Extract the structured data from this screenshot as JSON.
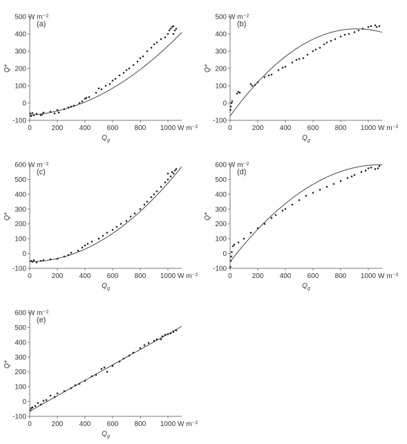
{
  "figure": {
    "x_unit_label": "W m⁻²",
    "y_unit_label": "W m⁻²"
  },
  "chart_data": [
    {
      "type": "scatter",
      "panel_label": "(a)",
      "xlabel": "Q",
      "xlabel_sub": "g",
      "ylabel": "Q*",
      "xlim": [
        0,
        1100
      ],
      "ylim": [
        -100,
        500
      ],
      "xticks": [
        0,
        200,
        400,
        600,
        800,
        1000
      ],
      "yticks": [
        -100,
        0,
        100,
        200,
        300,
        400,
        500
      ],
      "fit_curve": {
        "a": -70,
        "b": 0.05,
        "c": 0.00035
      },
      "points": [
        [
          5,
          -60
        ],
        [
          10,
          -75
        ],
        [
          20,
          -58
        ],
        [
          30,
          -70
        ],
        [
          50,
          -62
        ],
        [
          80,
          -70
        ],
        [
          90,
          -65
        ],
        [
          100,
          -55
        ],
        [
          150,
          -50
        ],
        [
          180,
          -60
        ],
        [
          200,
          -40
        ],
        [
          210,
          -55
        ],
        [
          250,
          -35
        ],
        [
          280,
          -25
        ],
        [
          300,
          -20
        ],
        [
          320,
          -15
        ],
        [
          360,
          0
        ],
        [
          380,
          10
        ],
        [
          400,
          25
        ],
        [
          410,
          30
        ],
        [
          430,
          35
        ],
        [
          480,
          60
        ],
        [
          500,
          85
        ],
        [
          520,
          80
        ],
        [
          550,
          100
        ],
        [
          580,
          110
        ],
        [
          600,
          130
        ],
        [
          620,
          140
        ],
        [
          650,
          160
        ],
        [
          680,
          175
        ],
        [
          700,
          190
        ],
        [
          720,
          200
        ],
        [
          750,
          220
        ],
        [
          780,
          240
        ],
        [
          800,
          260
        ],
        [
          820,
          270
        ],
        [
          850,
          300
        ],
        [
          880,
          320
        ],
        [
          900,
          340
        ],
        [
          920,
          350
        ],
        [
          950,
          370
        ],
        [
          980,
          380
        ],
        [
          1000,
          400
        ],
        [
          1010,
          420
        ],
        [
          1020,
          430
        ],
        [
          1030,
          440
        ],
        [
          1040,
          445
        ],
        [
          1050,
          420
        ],
        [
          1060,
          430
        ],
        [
          1040,
          400
        ]
      ]
    },
    {
      "type": "scatter",
      "panel_label": "(b)",
      "xlabel": "Q",
      "xlabel_sub": "g",
      "ylabel": "Q*",
      "xlim": [
        0,
        1100
      ],
      "ylim": [
        -100,
        500
      ],
      "xticks": [
        0,
        200,
        400,
        600,
        800,
        1000
      ],
      "yticks": [
        -100,
        0,
        100,
        200,
        300,
        400,
        500
      ],
      "fit_curve": {
        "a": -75,
        "b": 1.1,
        "c": -0.0006
      },
      "points": [
        [
          2,
          -40
        ],
        [
          5,
          -20
        ],
        [
          10,
          0
        ],
        [
          15,
          10
        ],
        [
          50,
          55
        ],
        [
          60,
          65
        ],
        [
          70,
          60
        ],
        [
          150,
          110
        ],
        [
          160,
          100
        ],
        [
          180,
          105
        ],
        [
          200,
          120
        ],
        [
          250,
          150
        ],
        [
          280,
          160
        ],
        [
          300,
          165
        ],
        [
          350,
          190
        ],
        [
          380,
          205
        ],
        [
          400,
          210
        ],
        [
          450,
          235
        ],
        [
          480,
          250
        ],
        [
          500,
          255
        ],
        [
          530,
          260
        ],
        [
          560,
          280
        ],
        [
          600,
          300
        ],
        [
          620,
          310
        ],
        [
          650,
          320
        ],
        [
          680,
          340
        ],
        [
          700,
          350
        ],
        [
          730,
          360
        ],
        [
          760,
          370
        ],
        [
          800,
          385
        ],
        [
          830,
          395
        ],
        [
          860,
          400
        ],
        [
          900,
          410
        ],
        [
          930,
          420
        ],
        [
          960,
          430
        ],
        [
          1000,
          440
        ],
        [
          1020,
          445
        ],
        [
          1050,
          450
        ],
        [
          1060,
          440
        ],
        [
          1080,
          445
        ]
      ]
    },
    {
      "type": "scatter",
      "panel_label": "(c)",
      "xlabel": "Q",
      "xlabel_sub": "g",
      "ylabel": "Q*",
      "xlim": [
        0,
        1100
      ],
      "ylim": [
        -100,
        600
      ],
      "xticks": [
        0,
        200,
        400,
        600,
        800,
        1000
      ],
      "yticks": [
        -100,
        0,
        100,
        200,
        300,
        400,
        500,
        600
      ],
      "fit_curve": {
        "a": -55,
        "b": 0.0,
        "c": 0.00053
      },
      "points": [
        [
          10,
          -50
        ],
        [
          20,
          -55
        ],
        [
          30,
          -45
        ],
        [
          50,
          -60
        ],
        [
          80,
          -50
        ],
        [
          100,
          -45
        ],
        [
          150,
          -40
        ],
        [
          200,
          -35
        ],
        [
          250,
          -20
        ],
        [
          280,
          -10
        ],
        [
          300,
          5
        ],
        [
          350,
          20
        ],
        [
          380,
          40
        ],
        [
          400,
          55
        ],
        [
          420,
          65
        ],
        [
          450,
          80
        ],
        [
          500,
          100
        ],
        [
          530,
          120
        ],
        [
          560,
          140
        ],
        [
          600,
          160
        ],
        [
          630,
          180
        ],
        [
          660,
          200
        ],
        [
          700,
          220
        ],
        [
          730,
          250
        ],
        [
          760,
          270
        ],
        [
          800,
          300
        ],
        [
          830,
          330
        ],
        [
          850,
          350
        ],
        [
          880,
          380
        ],
        [
          900,
          400
        ],
        [
          920,
          420
        ],
        [
          950,
          450
        ],
        [
          980,
          480
        ],
        [
          1000,
          500
        ],
        [
          1020,
          520
        ],
        [
          1040,
          540
        ],
        [
          1050,
          560
        ],
        [
          1060,
          570
        ],
        [
          1030,
          550
        ],
        [
          1000,
          540
        ]
      ]
    },
    {
      "type": "scatter",
      "panel_label": "(d)",
      "xlabel": "Q",
      "xlabel_sub": "g",
      "ylabel": "Q*",
      "xlim": [
        0,
        1100
      ],
      "ylim": [
        -100,
        600
      ],
      "xticks": [
        0,
        200,
        400,
        600,
        800,
        1000
      ],
      "yticks": [
        -100,
        0,
        100,
        200,
        300,
        400,
        500,
        600
      ],
      "fit_curve": {
        "a": -55,
        "b": 1.2,
        "c": -0.00055
      },
      "points": [
        [
          2,
          -90
        ],
        [
          5,
          -50
        ],
        [
          8,
          -20
        ],
        [
          12,
          10
        ],
        [
          20,
          50
        ],
        [
          30,
          60
        ],
        [
          60,
          75
        ],
        [
          100,
          100
        ],
        [
          150,
          140
        ],
        [
          200,
          170
        ],
        [
          250,
          200
        ],
        [
          300,
          240
        ],
        [
          330,
          260
        ],
        [
          380,
          290
        ],
        [
          400,
          300
        ],
        [
          450,
          330
        ],
        [
          500,
          360
        ],
        [
          550,
          390
        ],
        [
          600,
          410
        ],
        [
          650,
          430
        ],
        [
          700,
          450
        ],
        [
          750,
          470
        ],
        [
          800,
          490
        ],
        [
          850,
          510
        ],
        [
          880,
          520
        ],
        [
          900,
          530
        ],
        [
          950,
          550
        ],
        [
          980,
          560
        ],
        [
          1000,
          575
        ],
        [
          1020,
          580
        ],
        [
          1050,
          570
        ],
        [
          1070,
          575
        ],
        [
          1080,
          590
        ]
      ]
    },
    {
      "type": "scatter",
      "panel_label": "(e)",
      "xlabel": "Q",
      "xlabel_sub": "g",
      "ylabel": "Q*",
      "xlim": [
        0,
        1100
      ],
      "ylim": [
        -100,
        600
      ],
      "xticks": [
        0,
        200,
        400,
        600,
        800,
        1000
      ],
      "yticks": [
        -100,
        0,
        100,
        200,
        300,
        400,
        500,
        600
      ],
      "fit_curve": {
        "a": -65,
        "b": 0.52,
        "c": 0.0
      },
      "points": [
        [
          5,
          -60
        ],
        [
          10,
          -45
        ],
        [
          20,
          -40
        ],
        [
          40,
          -30
        ],
        [
          60,
          -10
        ],
        [
          80,
          -20
        ],
        [
          100,
          5
        ],
        [
          120,
          10
        ],
        [
          150,
          40
        ],
        [
          180,
          30
        ],
        [
          200,
          55
        ],
        [
          250,
          70
        ],
        [
          300,
          90
        ],
        [
          330,
          110
        ],
        [
          360,
          120
        ],
        [
          400,
          140
        ],
        [
          450,
          170
        ],
        [
          480,
          180
        ],
        [
          520,
          220
        ],
        [
          540,
          230
        ],
        [
          560,
          200
        ],
        [
          600,
          240
        ],
        [
          650,
          270
        ],
        [
          680,
          290
        ],
        [
          720,
          310
        ],
        [
          750,
          330
        ],
        [
          800,
          360
        ],
        [
          830,
          380
        ],
        [
          860,
          395
        ],
        [
          900,
          410
        ],
        [
          920,
          420
        ],
        [
          960,
          440
        ],
        [
          1000,
          455
        ],
        [
          1020,
          460
        ],
        [
          1040,
          470
        ],
        [
          1060,
          480
        ],
        [
          980,
          450
        ],
        [
          950,
          420
        ]
      ]
    }
  ]
}
